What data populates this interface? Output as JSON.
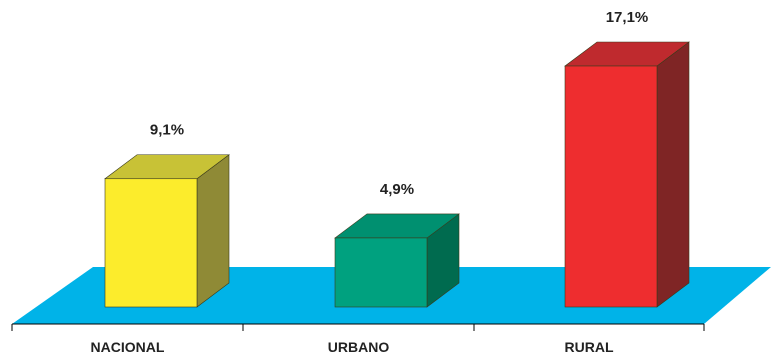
{
  "chart_data": {
    "type": "bar",
    "categories": [
      "NACIONAL",
      "URBANO",
      "RURAL"
    ],
    "values": [
      9.1,
      4.9,
      17.1
    ],
    "value_labels": [
      "9,1%",
      "4,9%",
      "17,1%"
    ],
    "bar_colors": [
      {
        "front": "#fcec2c",
        "side": "#8f8a36",
        "top": "#c8c236"
      },
      {
        "front": "#00a17f",
        "side": "#006b4f",
        "top": "#009070"
      },
      {
        "front": "#ee2d2f",
        "side": "#7f2525",
        "top": "#bf2a2e"
      }
    ],
    "floor_color": "#00b3e8",
    "title": "",
    "xlabel": "",
    "ylabel": "",
    "ylim": [
      0,
      17.1
    ],
    "grid": false,
    "legend": "none"
  }
}
